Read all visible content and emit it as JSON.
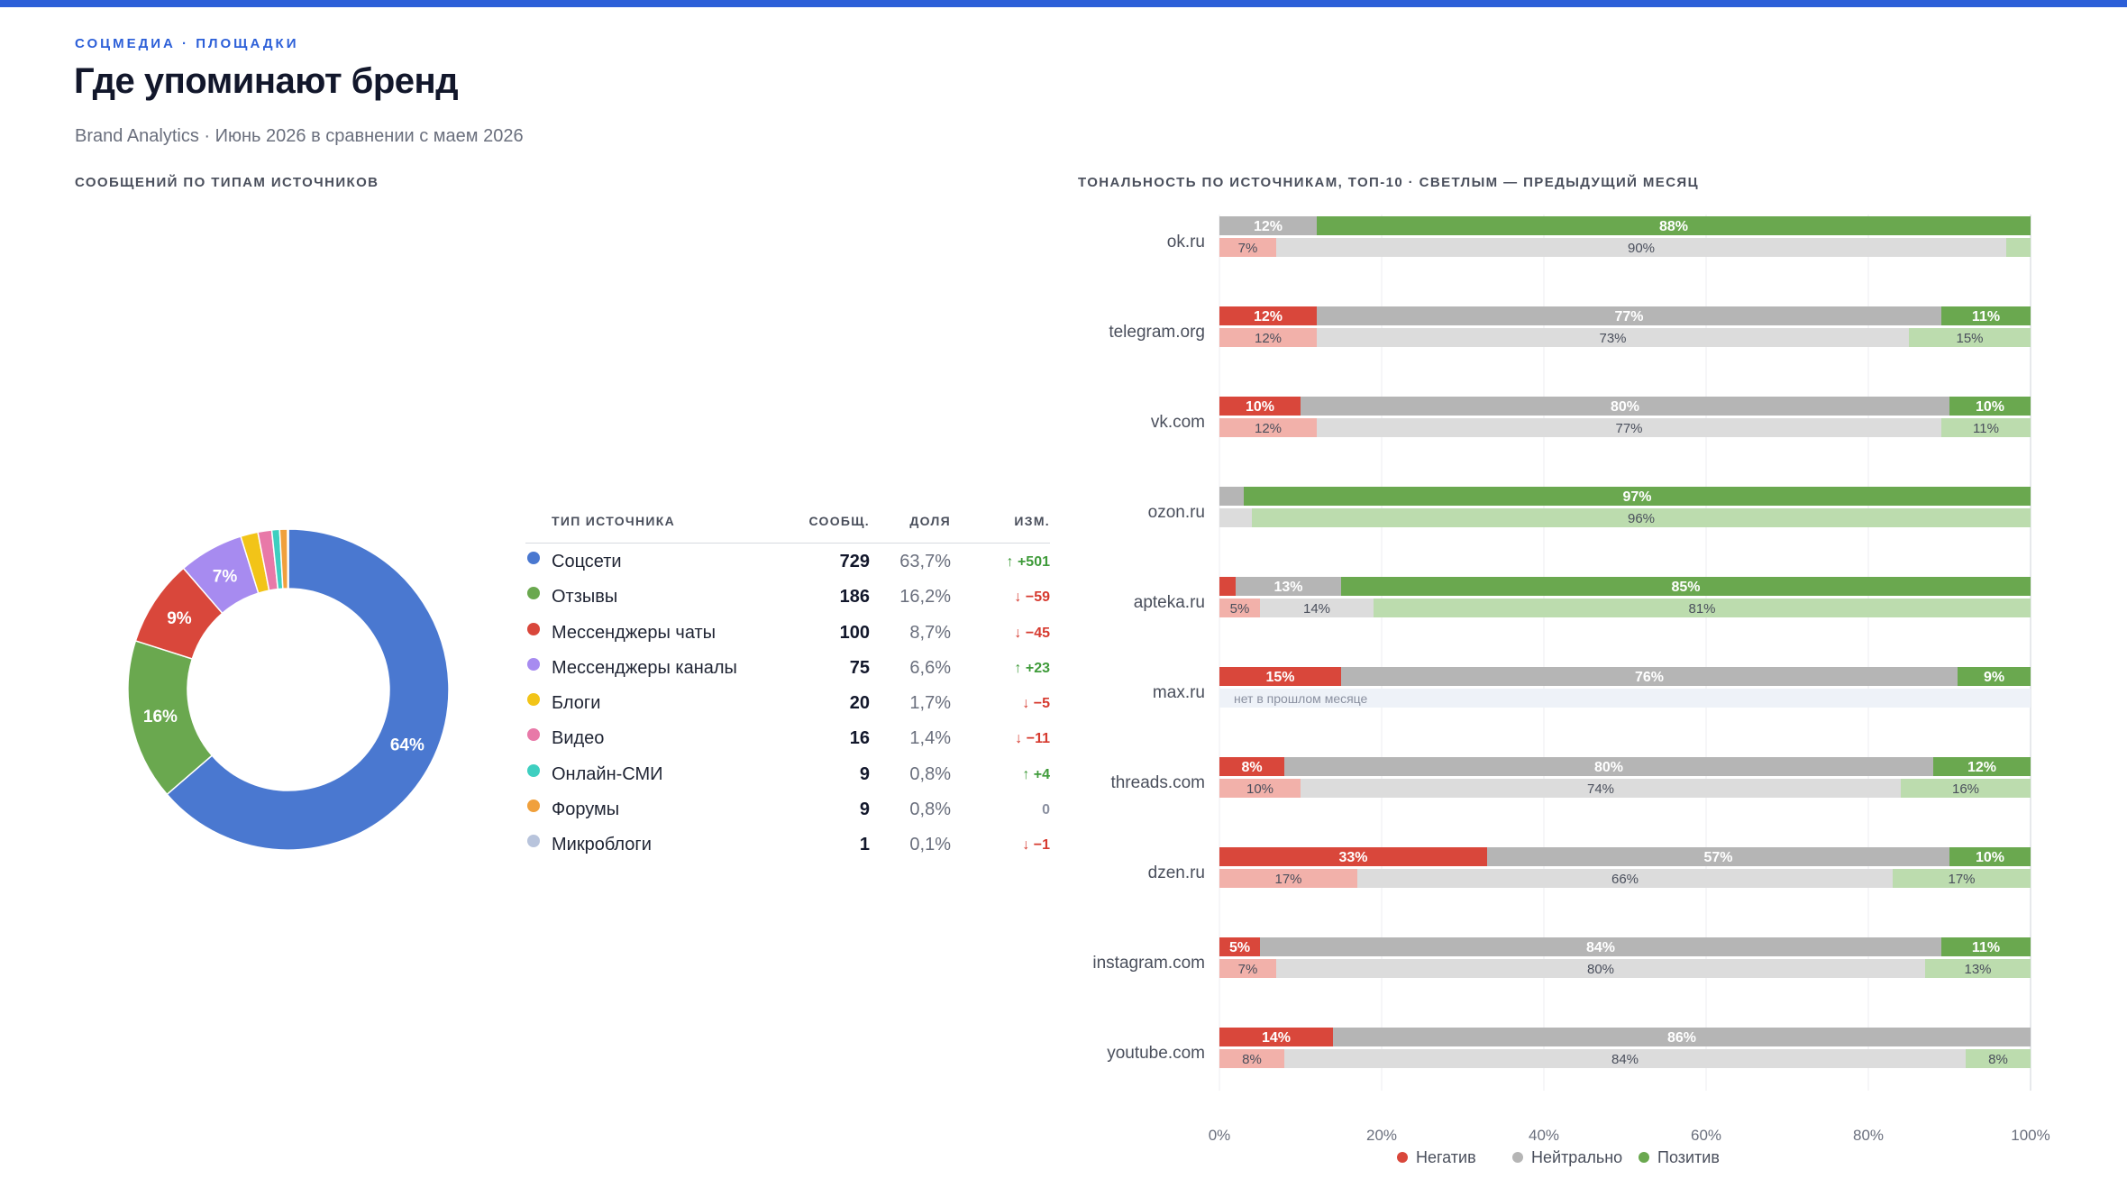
{
  "header": {
    "eyebrow": "СОЦМЕДИА · ПЛОЩАДКИ",
    "title": "Где упоминают бренд",
    "subtitle": "Brand Analytics · Июнь 2026 в сравнении с маем 2026"
  },
  "left_section": {
    "label": "СООБЩЕНИЙ ПО ТИПАМ ИСТОЧНИКОВ"
  },
  "right_section": {
    "label": "ТОНАЛЬНОСТЬ ПО ИСТОЧНИКАМ, ТОП-10 · СВЕТЛЫМ — ПРЕДЫДУЩИЙ МЕСЯЦ"
  },
  "table": {
    "headers": {
      "type": "ТИП ИСТОЧНИКА",
      "count": "СООБЩ.",
      "share": "ДОЛЯ",
      "change": "ИЗМ."
    },
    "rows": [
      {
        "name": "Соцсети",
        "count": "729",
        "share": "63,7%",
        "change": "↑ +501",
        "dir": "up",
        "color": "#4a78d0"
      },
      {
        "name": "Отзывы",
        "count": "186",
        "share": "16,2%",
        "change": "↓ −59",
        "dir": "down",
        "color": "#6aa84f"
      },
      {
        "name": "Мессенджеры чаты",
        "count": "100",
        "share": "8,7%",
        "change": "↓ −45",
        "dir": "down",
        "color": "#d9473b"
      },
      {
        "name": "Мессенджеры каналы",
        "count": "75",
        "share": "6,6%",
        "change": "↑ +23",
        "dir": "up",
        "color": "#a78bf0"
      },
      {
        "name": "Блоги",
        "count": "20",
        "share": "1,7%",
        "change": "↓ −5",
        "dir": "down",
        "color": "#f2c418"
      },
      {
        "name": "Видео",
        "count": "16",
        "share": "1,4%",
        "change": "↓ −11",
        "dir": "down",
        "color": "#e879a8"
      },
      {
        "name": "Онлайн-СМИ",
        "count": "9",
        "share": "0,8%",
        "change": "↑ +4",
        "dir": "up",
        "color": "#3ecfc0"
      },
      {
        "name": "Форумы",
        "count": "9",
        "share": "0,8%",
        "change": "0",
        "dir": "flat",
        "color": "#f0a03c"
      },
      {
        "name": "Микроблоги",
        "count": "1",
        "share": "0,1%",
        "change": "↓ −1",
        "dir": "down",
        "color": "#b8c4dc"
      }
    ]
  },
  "colors": {
    "accent": "#2c5fd8",
    "up": "#3f9b3a",
    "down": "#d63a2f",
    "flat": "#8a90a0",
    "negative": "#d9473b",
    "negative_prev": "#f2b1aa",
    "neutral": "#b5b5b5",
    "neutral_prev": "#dcdcdc",
    "positive": "#6aa84f",
    "positive_prev": "#bcdcae",
    "no_data_bg": "#eef2f8"
  },
  "chart_data": [
    {
      "type": "pie",
      "variant": "donut",
      "categories": [
        "Соцсети",
        "Отзывы",
        "Мессенджеры чаты",
        "Мессенджеры каналы",
        "Блоги",
        "Видео",
        "Онлайн-СМИ",
        "Форумы",
        "Микроблоги"
      ],
      "values": [
        729,
        186,
        100,
        75,
        20,
        16,
        9,
        9,
        1
      ],
      "data_labels": [
        "64%",
        "16%",
        "9%",
        "7%",
        "",
        "",
        "",
        "",
        ""
      ]
    },
    {
      "type": "bar",
      "orientation": "horizontal",
      "stacked": "percent",
      "categories": [
        "ok.ru",
        "telegram.org",
        "vk.com",
        "ozon.ru",
        "apteka.ru",
        "max.ru",
        "threads.com",
        "dzen.ru",
        "instagram.com",
        "youtube.com"
      ],
      "series_names": [
        "Негатив",
        "Нейтрально",
        "Позитив"
      ],
      "current": [
        [
          0,
          12,
          88
        ],
        [
          12,
          77,
          11
        ],
        [
          10,
          80,
          10
        ],
        [
          0,
          3,
          97
        ],
        [
          2,
          13,
          85
        ],
        [
          15,
          76,
          9
        ],
        [
          8,
          80,
          12
        ],
        [
          33,
          57,
          10
        ],
        [
          5,
          84,
          11
        ],
        [
          14,
          86,
          0
        ]
      ],
      "previous": [
        [
          7,
          90,
          3
        ],
        [
          12,
          73,
          15
        ],
        [
          12,
          77,
          11
        ],
        [
          0,
          4,
          96
        ],
        [
          5,
          14,
          81
        ],
        null,
        [
          10,
          74,
          16
        ],
        [
          17,
          66,
          17
        ],
        [
          7,
          80,
          13
        ],
        [
          8,
          84,
          8
        ]
      ],
      "no_prev_label": "нет в прошлом месяце",
      "xlim": [
        0,
        100
      ],
      "x_ticks": [
        "0%",
        "20%",
        "40%",
        "60%",
        "80%",
        "100%"
      ],
      "legend": [
        "Негатив",
        "Нейтрально",
        "Позитив"
      ],
      "legend_position": "bottom-center"
    }
  ]
}
